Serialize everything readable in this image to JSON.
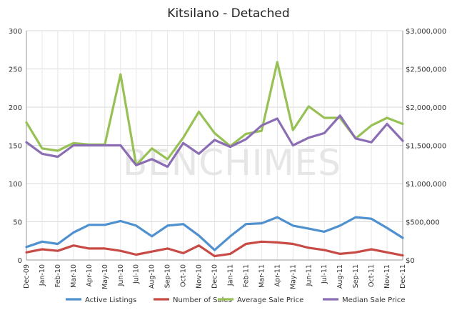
{
  "chart_data": {
    "type": "line",
    "title": "Kitsilano - Detached",
    "watermark": "BENCHIMES",
    "categories": [
      "Dec-09",
      "Jan-10",
      "Feb-10",
      "Mar-10",
      "Apr-10",
      "May-10",
      "Jun-10",
      "Jul-10",
      "Aug-10",
      "Sep-10",
      "Oct-10",
      "Nov-10",
      "Dec-10",
      "Jan-11",
      "Feb-11",
      "Mar-11",
      "Apr-11",
      "May-11",
      "Jun-11",
      "Jul-11",
      "Aug-11",
      "Sep-11",
      "Oct-11",
      "Nov-11",
      "Dec-11"
    ],
    "y_left": {
      "ylim": [
        0,
        300
      ],
      "ticks": [
        "0",
        "50",
        "100",
        "150",
        "200",
        "250",
        "300"
      ]
    },
    "y_right": {
      "ylim": [
        0,
        3000000
      ],
      "ticks": [
        "$0",
        "$500,000",
        "$1,000,000",
        "$1,500,000",
        "$2,000,000",
        "$2,500,000",
        "$3,000,000"
      ]
    },
    "grid": true,
    "legend_position": "bottom",
    "series": [
      {
        "name": "Active Listings",
        "axis": "left",
        "color": "#4f90cf",
        "values": [
          17,
          24,
          21,
          36,
          46,
          46,
          51,
          45,
          31,
          45,
          47,
          32,
          13,
          31,
          47,
          48,
          56,
          45,
          41,
          37,
          45,
          56,
          54,
          42,
          29
        ]
      },
      {
        "name": "Number of Sales",
        "axis": "left",
        "color": "#c84a45",
        "values": [
          10,
          14,
          12,
          19,
          15,
          15,
          12,
          7,
          11,
          15,
          9,
          19,
          5,
          8,
          21,
          24,
          23,
          21,
          16,
          13,
          8,
          10,
          14,
          10,
          6
        ]
      },
      {
        "name": "Average Sale Price",
        "axis": "right",
        "color": "#97c155",
        "values": [
          1800000,
          1460000,
          1430000,
          1530000,
          1510000,
          1510000,
          2430000,
          1240000,
          1460000,
          1320000,
          1600000,
          1940000,
          1660000,
          1490000,
          1650000,
          1690000,
          2590000,
          1700000,
          2010000,
          1860000,
          1860000,
          1590000,
          1760000,
          1860000,
          1780000
        ]
      },
      {
        "name": "Median Sale Price",
        "axis": "right",
        "color": "#8b6db3",
        "values": [
          1540000,
          1390000,
          1350000,
          1500000,
          1500000,
          1500000,
          1500000,
          1240000,
          1320000,
          1220000,
          1530000,
          1390000,
          1570000,
          1480000,
          1580000,
          1760000,
          1850000,
          1500000,
          1600000,
          1660000,
          1890000,
          1590000,
          1540000,
          1780000,
          1560000
        ]
      }
    ]
  }
}
